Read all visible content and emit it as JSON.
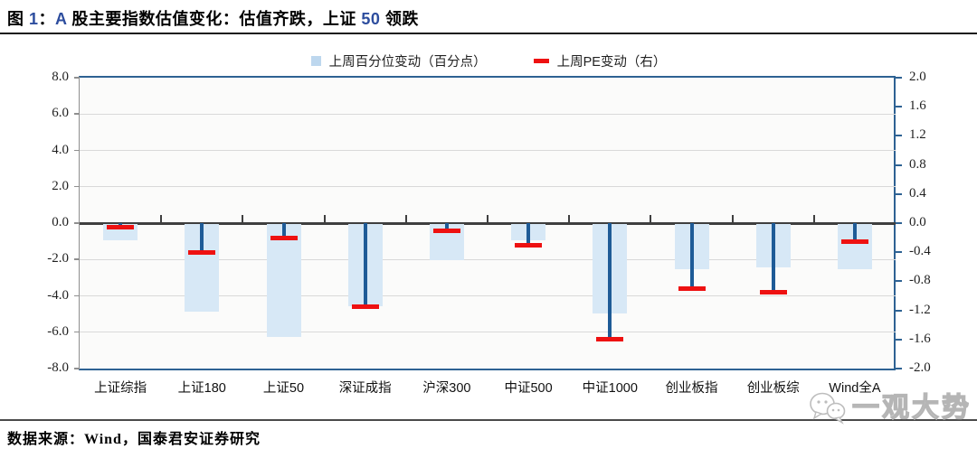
{
  "header": {
    "title_plain": "图 1：A 股主要指数估值变化：估值齐跌，上证 50 领跌",
    "title_segments": [
      {
        "t": "图 ",
        "c": "#000000"
      },
      {
        "t": "1",
        "c": "#2d4d9e"
      },
      {
        "t": "：",
        "c": "#000000"
      },
      {
        "t": "A",
        "c": "#2d4d9e"
      },
      {
        "t": " 股主要指数估值变化：估值齐跌，上证 ",
        "c": "#000000"
      },
      {
        "t": "50",
        "c": "#2d4d9e"
      },
      {
        "t": " 领跌",
        "c": "#000000"
      }
    ]
  },
  "legend": {
    "items": [
      {
        "label": "上周百分位变动（百分点）",
        "swatch": "light-blue-square",
        "color": "#bdd7ee"
      },
      {
        "label": "上周PE变动（右）",
        "swatch": "red-dash",
        "color": "#ee1111"
      }
    ]
  },
  "chart_data": {
    "type": "bar",
    "title": "A股主要指数估值变化",
    "categories": [
      "上证综指",
      "上证180",
      "上证50",
      "深证成指",
      "沪深300",
      "中证500",
      "中证1000",
      "创业板指",
      "创业板综",
      "Wind全A"
    ],
    "series": [
      {
        "name": "上周百分位变动（百分点）",
        "type": "bar",
        "axis": "left",
        "values": [
          -0.9,
          -4.8,
          -6.2,
          -4.5,
          -2.0,
          -0.9,
          -4.9,
          -2.5,
          -2.4,
          -2.5
        ]
      },
      {
        "name": "上周PE变动（右）",
        "type": "marker-with-stem",
        "axis": "right",
        "values": [
          -0.05,
          -0.4,
          -0.2,
          -1.15,
          -0.1,
          -0.3,
          -1.6,
          -0.9,
          -0.95,
          -0.25
        ]
      }
    ],
    "left_axis": {
      "ticks": [
        "8.0",
        "6.0",
        "4.0",
        "2.0",
        "0.0",
        "-2.0",
        "-4.0",
        "-6.0",
        "-8.0"
      ],
      "min": -8,
      "max": 8
    },
    "right_axis": {
      "ticks": [
        "2.0",
        "1.6",
        "1.2",
        "0.8",
        "0.4",
        "0.0",
        "-0.4",
        "-0.8",
        "-1.2",
        "-1.6",
        "-2.0"
      ],
      "min": -2,
      "max": 2
    },
    "grid": true,
    "legend_position": "top"
  },
  "colors": {
    "bar_fill": "#d7e8f6",
    "stem_blue": "#1e5b97",
    "marker_red": "#ee1111",
    "zero_line": "#3f3f3f",
    "gridline": "#d9d9d9",
    "frame_blue": "#2e6293",
    "axis_gray": "#8f8f8f",
    "plot_bg": "#fbfbfa"
  },
  "footer": {
    "source": "数据来源：Wind，国泰君安证券研究",
    "watermark": "一观大势"
  }
}
